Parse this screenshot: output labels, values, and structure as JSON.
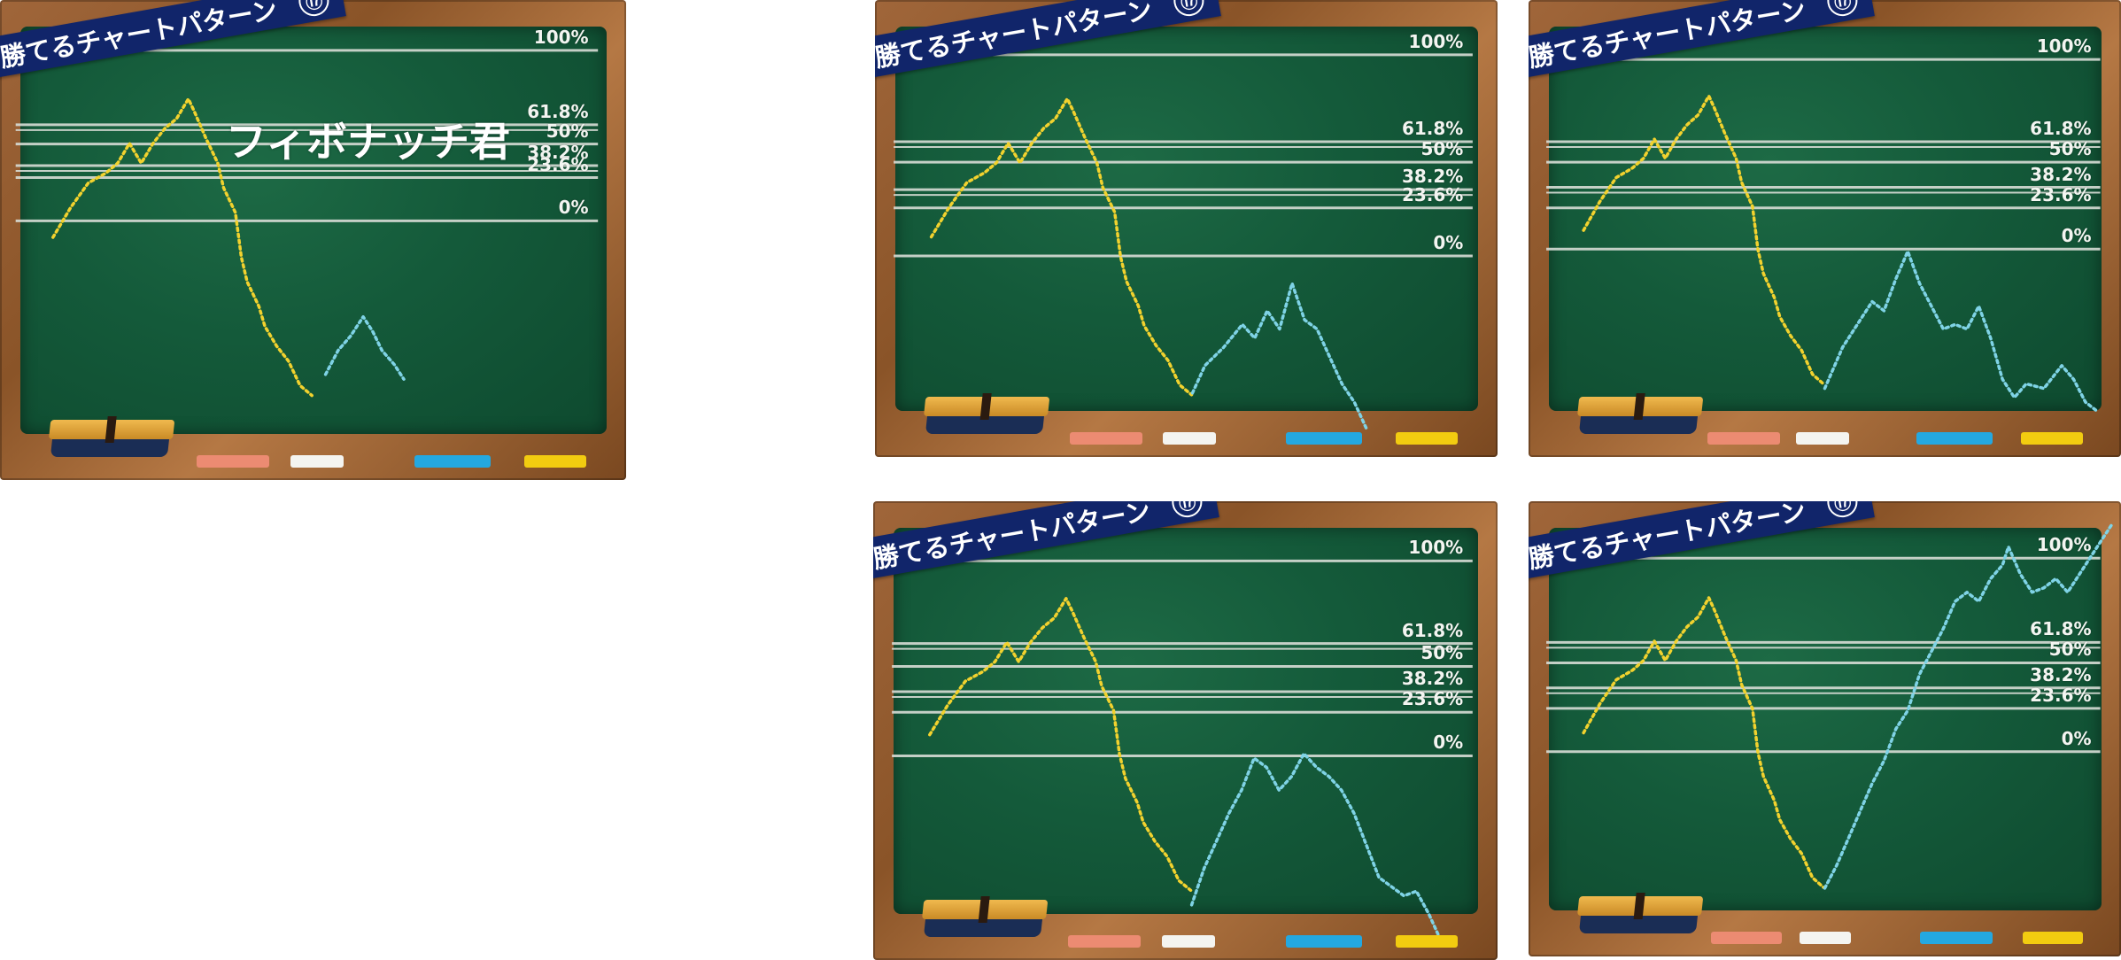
{
  "banner": {
    "title": "勝てるチャートパターン",
    "number": "⑰"
  },
  "caption": "フィボナッチ君",
  "levels": {
    "l100": "100%",
    "l618": "61.8%",
    "l50": "50%",
    "l382": "38.2%",
    "l236": "23.6%",
    "l0": "0%"
  },
  "colors": {
    "board": "#145a3a",
    "frame": "#8a5428",
    "banner": "#11256a",
    "chalk_yellow": "#f2d22e",
    "chalk_cyan": "#7fd3e6"
  },
  "icons": {
    "eraser": "chalkboard-eraser",
    "chalk": "chalk-sticks"
  },
  "chalk_pieces": [
    "pink",
    "white",
    "blue",
    "yellow"
  ]
}
